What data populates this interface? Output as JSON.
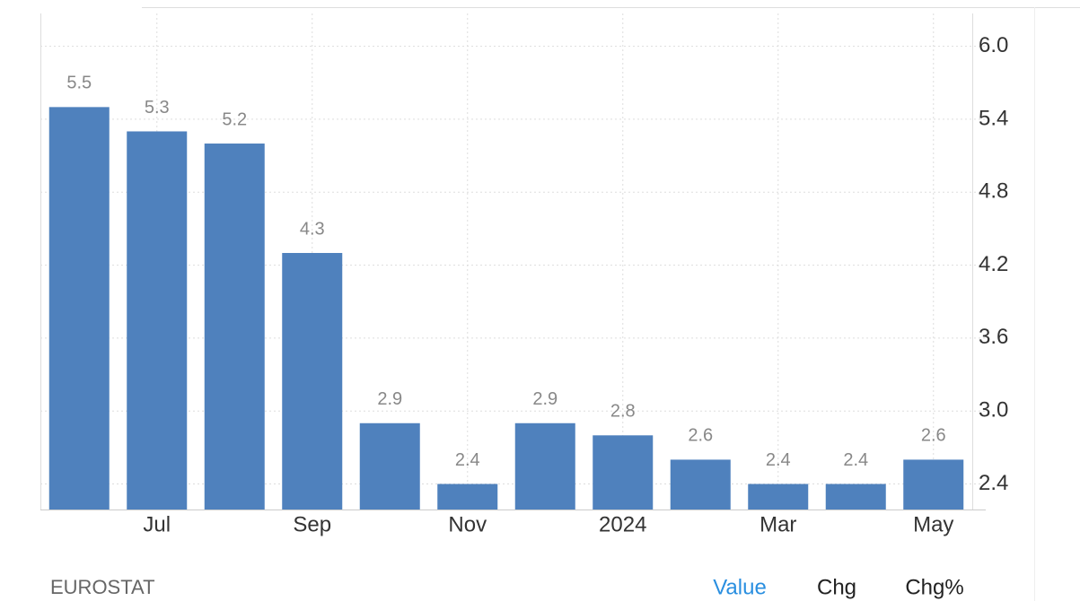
{
  "chart_data": {
    "type": "bar",
    "categories": [
      null,
      "Jul",
      null,
      "Sep",
      null,
      "Nov",
      null,
      "2024",
      null,
      "Mar",
      null,
      "May"
    ],
    "values": [
      5.5,
      5.3,
      5.2,
      4.3,
      2.9,
      2.4,
      2.9,
      2.8,
      2.6,
      2.4,
      2.4,
      2.6
    ],
    "color": "#4f81bd",
    "ylim": [
      2.19,
      6.27
    ],
    "yticks": [
      2.4,
      {
        "value": 3,
        "label": "3.0"
      },
      3.6,
      4.2,
      4.8,
      5.4,
      {
        "value": 6,
        "label": "6.0"
      }
    ],
    "grid": true
  },
  "source": "EUROSTAT",
  "tabs": [
    "Value",
    "Chg",
    "Chg%"
  ]
}
